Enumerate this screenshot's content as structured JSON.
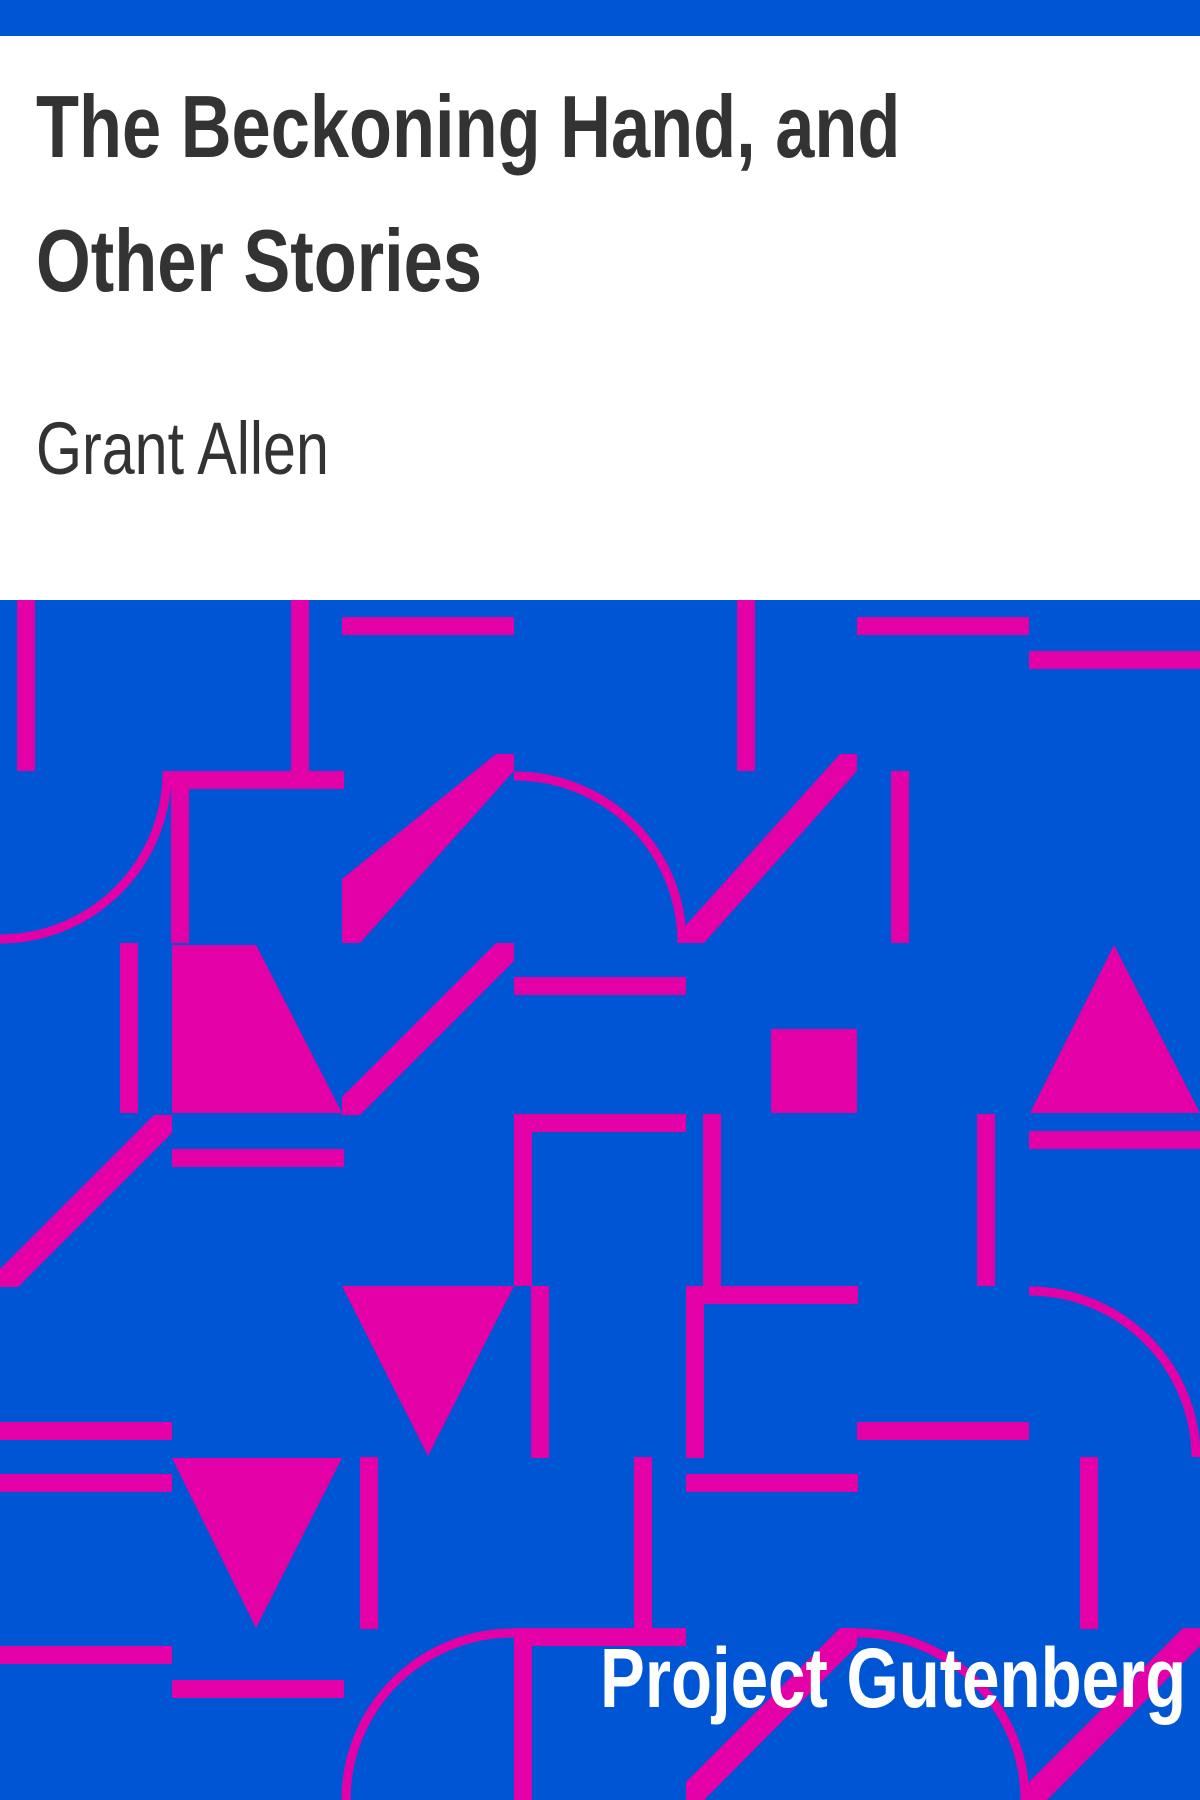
{
  "book": {
    "title": "The Beckoning Hand, and Other Stories",
    "author": "Grant Allen",
    "publisher": "Project Gutenberg"
  },
  "colors": {
    "background": "#0055d4",
    "accent": "#e400a7",
    "panel": "#ffffff",
    "title_text": "#333333",
    "publisher_text": "#ffffff"
  }
}
